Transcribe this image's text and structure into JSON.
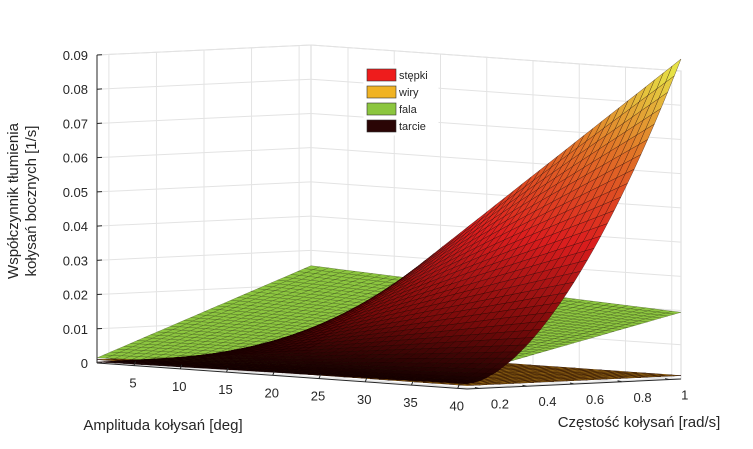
{
  "chart_data": {
    "type": "surface",
    "title": "",
    "zlabel_line1": "Współczynnik tłumienia",
    "zlabel_line2": "kołysań bocznych [1/s]",
    "xlabel": "Amplituda kołysań [deg]",
    "ylabel": "Częstość kołysań [rad/s]",
    "xlim": [
      1,
      41
    ],
    "ylim": [
      0.15,
      1.05
    ],
    "zlim": [
      0,
      0.09
    ],
    "xticks": [
      "5",
      "10",
      "15",
      "20",
      "25",
      "30",
      "35",
      "40"
    ],
    "yticks": [
      "0.2",
      "0.4",
      "0.6",
      "0.8",
      "1"
    ],
    "zticks": [
      "0",
      "0.01",
      "0.02",
      "0.03",
      "0.04",
      "0.05",
      "0.06",
      "0.07",
      "0.08",
      "0.09"
    ],
    "grid": true,
    "legend_position": "top-center",
    "series": [
      {
        "name": "stępki",
        "color": "#ee1c1c",
        "z_corners": {
          "x1_y0.15": 0.0003,
          "x41_y0.15": 0.0012,
          "x1_y1.05": 0.0008,
          "x41_y1.05": 0.0935
        }
      },
      {
        "name": "wiry",
        "color": "#f0b323",
        "z_corners": {
          "x1_y0.15": 0.001,
          "x41_y0.15": 0.001,
          "x1_y1.05": 0.001,
          "x41_y1.05": 0.001
        }
      },
      {
        "name": "fala",
        "color": "#8cc63f",
        "z_corners": {
          "x1_y0.15": 0.0015,
          "x41_y0.15": 0.0045,
          "x1_y1.05": 0.0255,
          "x41_y1.05": 0.0195
        }
      },
      {
        "name": "tarcie",
        "color": "#2a0505",
        "z_corners": {
          "x1_y0.15": 0.001,
          "x41_y0.15": 0.001,
          "x1_y1.05": 0.001,
          "x41_y1.05": 0.001
        }
      }
    ]
  }
}
